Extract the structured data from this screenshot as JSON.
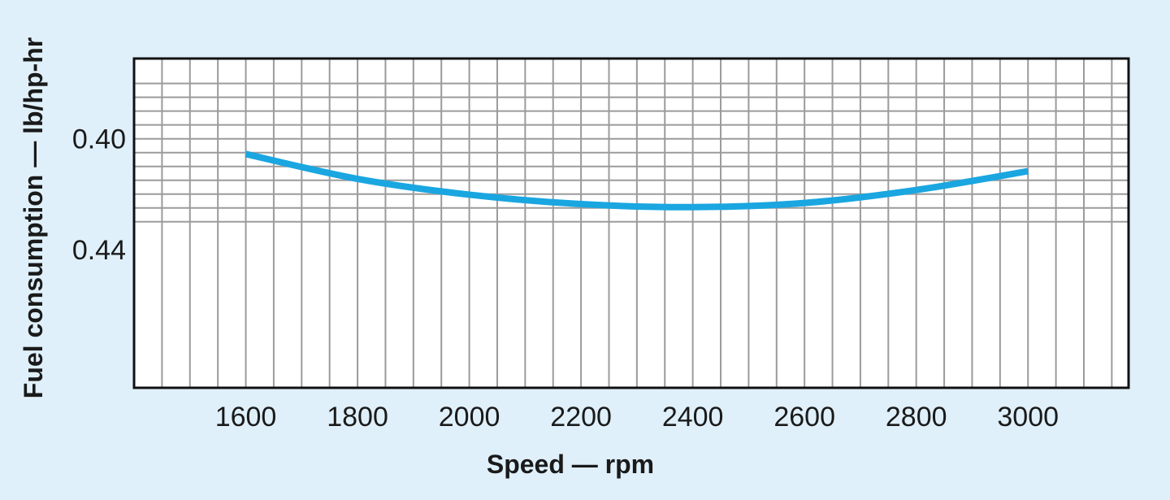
{
  "chart_data": {
    "type": "line",
    "title": "",
    "xlabel": "Speed — rpm",
    "ylabel": "Fuel consumption — lb/hp-hr",
    "xlim": [
      1400,
      3180
    ],
    "ylim": [
      0.371,
      0.49
    ],
    "y_inverted": true,
    "grid": true,
    "x_ticks": [
      "1600",
      "1800",
      "2000",
      "2200",
      "2400",
      "2600",
      "2800",
      "3000"
    ],
    "y_ticks": [
      "0.40",
      "0.44"
    ],
    "series": [
      {
        "name": "",
        "color": "#1aa6e0",
        "x": [
          1600,
          1800,
          2000,
          2200,
          2400,
          2600,
          2800,
          3000
        ],
        "y": [
          0.4055,
          0.4145,
          0.4202,
          0.4236,
          0.4247,
          0.4232,
          0.4185,
          0.4117
        ]
      }
    ]
  }
}
